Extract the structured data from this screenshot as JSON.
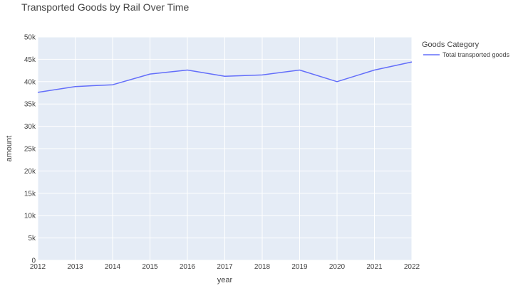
{
  "chart_data": {
    "type": "line",
    "title": "Transported Goods by Rail Over Time",
    "xlabel": "year",
    "ylabel": "amount",
    "x": [
      2012,
      2013,
      2014,
      2015,
      2016,
      2017,
      2018,
      2019,
      2020,
      2021,
      2022
    ],
    "xlim": [
      2012,
      2022
    ],
    "ylim": [
      0,
      50000
    ],
    "y_ticks": [
      "0",
      "5k",
      "10k",
      "15k",
      "20k",
      "25k",
      "30k",
      "35k",
      "40k",
      "45k",
      "50k"
    ],
    "grid": true,
    "legend_title": "Goods Category",
    "legend_position": "right",
    "colors": {
      "plot_background": "#e5ecf6",
      "gridline": "#ffffff",
      "text": "#444444"
    },
    "series": [
      {
        "name": "Total transported goods",
        "color": "#636efa",
        "values": [
          37600,
          38900,
          39300,
          41700,
          42600,
          41200,
          41500,
          42600,
          40000,
          42600,
          44400
        ]
      }
    ]
  }
}
